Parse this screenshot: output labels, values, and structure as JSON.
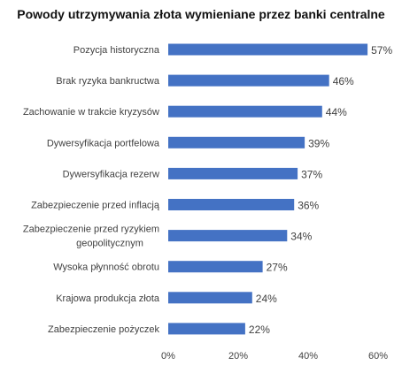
{
  "chart_data": {
    "type": "bar",
    "orientation": "horizontal",
    "title": "Powody utrzymywania złota wymieniane przez banki centralne",
    "categories": [
      "Pozycja historyczna",
      "Brak ryzyka bankructwa",
      "Zachowanie w trakcie kryzysów",
      "Dywersyfikacja portfelowa",
      "Dywersyfikacja rezerw",
      "Zabezpieczenie przed inflacją",
      [
        "Zabezpieczenie przed ryzykiem",
        "geopolitycznym"
      ],
      "Wysoka płynność obrotu",
      "Krajowa produkcja złota",
      "Zabezpieczenie pożyczek"
    ],
    "values": [
      57,
      46,
      44,
      39,
      37,
      36,
      34,
      27,
      24,
      22
    ],
    "value_labels": [
      "57%",
      "46%",
      "44%",
      "39%",
      "37%",
      "36%",
      "34%",
      "27%",
      "24%",
      "22%"
    ],
    "x_ticks": [
      0,
      20,
      40,
      60
    ],
    "x_tick_labels": [
      "0%",
      "20%",
      "40%",
      "60%"
    ],
    "xlim": [
      0,
      60
    ],
    "xlabel": "",
    "ylabel": "",
    "grid": false,
    "legend": "none",
    "bar_color": "#4472C4"
  }
}
